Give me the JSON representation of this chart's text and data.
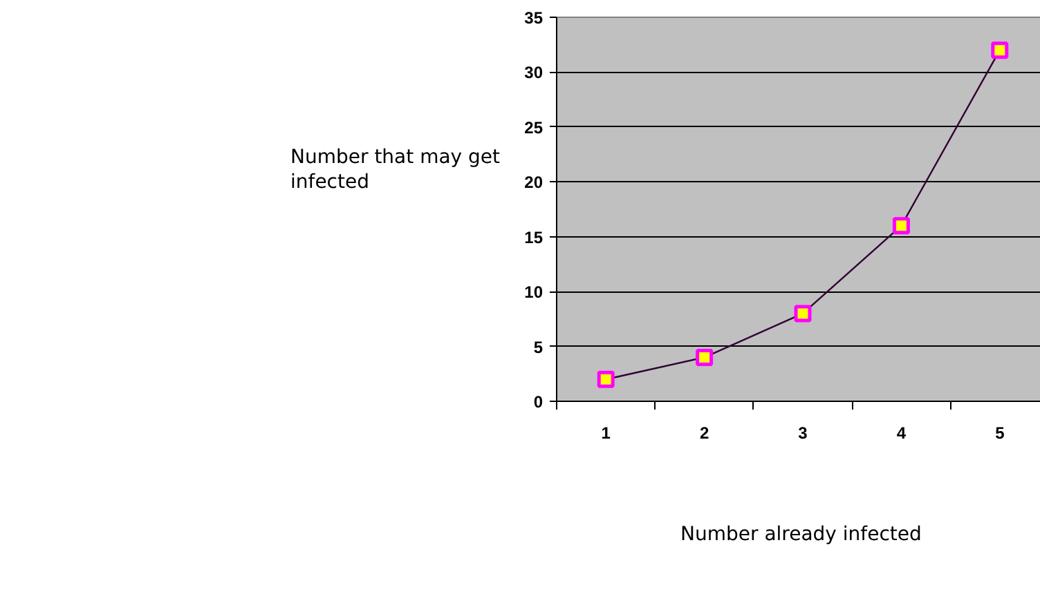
{
  "chart_data": {
    "type": "line",
    "xlabel": "Number already infected",
    "ylabel": "Number that may get infected",
    "categories": [
      "1",
      "2",
      "3",
      "4",
      "5"
    ],
    "series": [
      {
        "color": "#330033",
        "values": [
          2,
          4,
          8,
          16,
          32
        ]
      }
    ],
    "ylim": [
      0,
      35
    ],
    "yticks": [
      0,
      5,
      10,
      15,
      20,
      25,
      30,
      35
    ],
    "grid": "y",
    "marker": "square",
    "line_style": "solid"
  }
}
